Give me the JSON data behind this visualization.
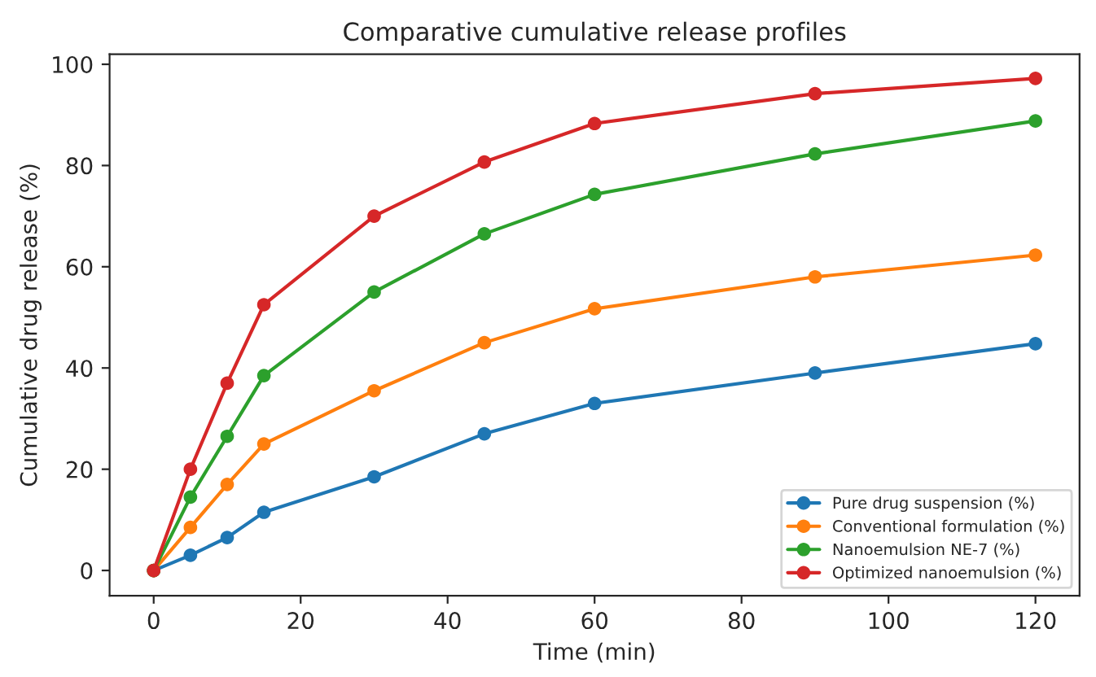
{
  "chart_data": {
    "type": "line",
    "title": "Comparative cumulative release profiles",
    "xlabel": "Time (min)",
    "ylabel": "Cumulative drug release (%)",
    "x": [
      0,
      5,
      10,
      15,
      30,
      45,
      60,
      90,
      120
    ],
    "series": [
      {
        "name": "Pure drug suspension (%)",
        "color": "#1f77b4",
        "values": [
          0,
          3,
          6.5,
          11.5,
          18.5,
          27,
          33,
          39,
          44.8
        ]
      },
      {
        "name": "Conventional formulation (%)",
        "color": "#ff7f0e",
        "values": [
          0,
          8.5,
          17,
          25,
          35.5,
          45,
          51.7,
          58,
          62.3
        ]
      },
      {
        "name": "Nanoemulsion NE-7 (%)",
        "color": "#2ca02c",
        "values": [
          0,
          14.5,
          26.5,
          38.5,
          55,
          66.5,
          74.3,
          82.3,
          88.8
        ]
      },
      {
        "name": "Optimized nanoemulsion (%)",
        "color": "#d62728",
        "values": [
          0,
          20,
          37,
          52.5,
          70,
          80.7,
          88.3,
          94.2,
          97.2
        ]
      }
    ],
    "xlim": [
      -6,
      126
    ],
    "ylim": [
      -5,
      102
    ],
    "xticks": [
      0,
      20,
      40,
      60,
      80,
      100,
      120
    ],
    "yticks": [
      0,
      20,
      40,
      60,
      80,
      100
    ],
    "marker": "circle",
    "line_style": "solid",
    "grid": false,
    "legend": "bottom right"
  }
}
